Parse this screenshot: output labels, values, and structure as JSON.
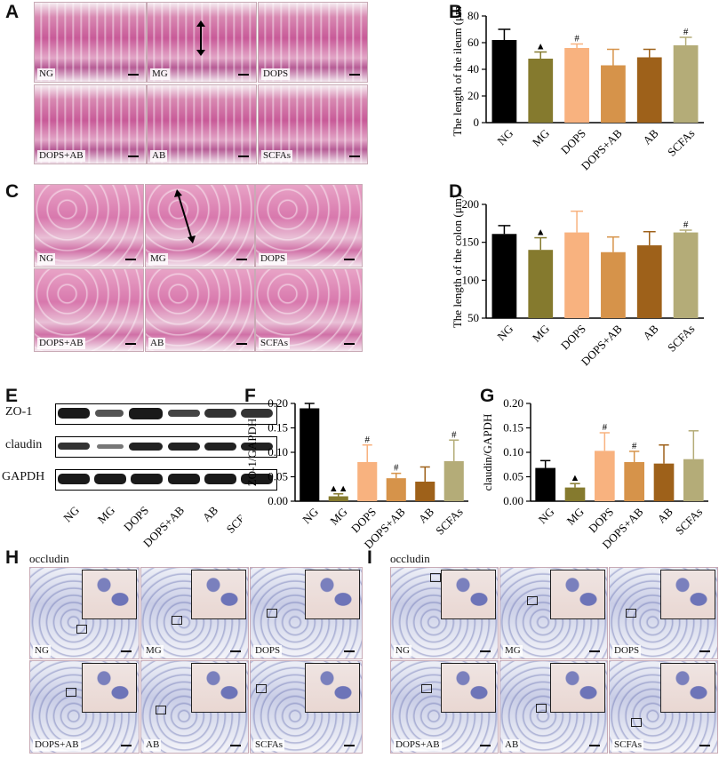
{
  "panel_letters": {
    "A": "A",
    "B": "B",
    "C": "C",
    "D": "D",
    "E": "E",
    "F": "F",
    "G": "G",
    "H": "H",
    "I": "I"
  },
  "micrographs_A": [
    "NG",
    "MG",
    "DOPS",
    "DOPS+AB",
    "AB",
    "SCFAs"
  ],
  "micrographs_C": [
    "NG",
    "MG",
    "DOPS",
    "DOPS+AB",
    "AB",
    "SCFAs"
  ],
  "micrographs_H": [
    "NG",
    "MG",
    "DOPS",
    "DOPS+AB",
    "AB",
    "SCFAs"
  ],
  "micrographs_I": [
    "NG",
    "MG",
    "DOPS",
    "DOPS+AB",
    "AB",
    "SCFAs"
  ],
  "ihc_titles": {
    "H": "occludin",
    "I": "occludin"
  },
  "western_blot": {
    "rows": [
      "ZO-1",
      "claudin",
      "GAPDH"
    ],
    "lanes": [
      "NG",
      "MG",
      "DOPS",
      "DOPS+AB",
      "AB",
      "SCFAs"
    ]
  },
  "colors": {
    "NG": "#000000",
    "MG": "#857a2e",
    "DOPS": "#f8b27f",
    "DOPS+AB": "#d6934a",
    "AB": "#9e611a",
    "SCFAs": "#b4ac78"
  },
  "chart_data": [
    {
      "id": "B",
      "type": "bar",
      "categories": [
        "NG",
        "MG",
        "DOPS",
        "DOPS+AB",
        "AB",
        "SCFAs"
      ],
      "values": [
        62,
        48,
        56,
        43,
        49,
        58
      ],
      "errors": [
        8,
        5,
        3,
        12,
        6,
        6
      ],
      "marks": [
        "",
        "▲",
        "#",
        "",
        "",
        "#"
      ],
      "ylabel": "The length of the ileum (μm)",
      "ylim": [
        0,
        80
      ],
      "yticks": [
        0,
        20,
        40,
        60,
        80
      ],
      "ytick_labels": [
        "0",
        "20",
        "40",
        "60",
        "80"
      ]
    },
    {
      "id": "D",
      "type": "bar",
      "categories": [
        "NG",
        "MG",
        "DOPS",
        "DOPS+AB",
        "AB",
        "SCFAs"
      ],
      "values": [
        161,
        140,
        163,
        137,
        146,
        163
      ],
      "errors": [
        11,
        16,
        28,
        20,
        18,
        3
      ],
      "marks": [
        "",
        "▲",
        "",
        "",
        "",
        "#"
      ],
      "ylabel": "The length of the colon (μm)",
      "ylim": [
        50,
        200
      ],
      "yticks": [
        50,
        100,
        150,
        200
      ],
      "ytick_labels": [
        "50",
        "100",
        "150",
        "200"
      ]
    },
    {
      "id": "F",
      "type": "bar",
      "categories": [
        "NG",
        "MG",
        "DOPS",
        "DOPS+AB",
        "AB",
        "SCFAs"
      ],
      "values": [
        0.19,
        0.01,
        0.08,
        0.047,
        0.04,
        0.082
      ],
      "errors": [
        0.01,
        0.005,
        0.035,
        0.01,
        0.03,
        0.043
      ],
      "marks": [
        "",
        "▲▲",
        "#",
        "#",
        "",
        "#"
      ],
      "ylabel": "ZO-1/GAPDH",
      "ylim": [
        0,
        0.2
      ],
      "yticks": [
        0,
        0.05,
        0.1,
        0.15,
        0.2
      ],
      "ytick_labels": [
        "0.00",
        "0.05",
        "0.10",
        "0.15",
        "0.20"
      ]
    },
    {
      "id": "G",
      "type": "bar",
      "categories": [
        "NG",
        "MG",
        "DOPS",
        "DOPS+AB",
        "AB",
        "SCFAs"
      ],
      "values": [
        0.068,
        0.028,
        0.103,
        0.08,
        0.077,
        0.086
      ],
      "errors": [
        0.015,
        0.008,
        0.037,
        0.022,
        0.038,
        0.058
      ],
      "marks": [
        "",
        "▲",
        "#",
        "#",
        "",
        ""
      ],
      "ylabel": "claudin/GAPDH",
      "ylim": [
        0,
        0.2
      ],
      "yticks": [
        0,
        0.05,
        0.1,
        0.15,
        0.2
      ],
      "ytick_labels": [
        "0.00",
        "0.05",
        "0.10",
        "0.15",
        "0.20"
      ]
    }
  ]
}
